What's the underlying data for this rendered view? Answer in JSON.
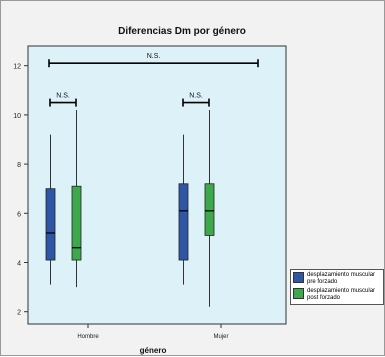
{
  "chart_data": {
    "type": "boxplot",
    "title": "Diferencias Dm por género",
    "xlabel": "género",
    "ylabel": "",
    "categories": [
      "Hombre",
      "Mujer"
    ],
    "ylim": [
      1.5,
      12.8
    ],
    "yticks": [
      2,
      4,
      6,
      8,
      10,
      12
    ],
    "colors": {
      "plot_bg": "#ddf1f8",
      "pre": "#2f55a5",
      "post": "#3ea84d"
    },
    "series": [
      {
        "name": "desplazamiento muscular pre forzado",
        "boxes": [
          {
            "category": "Hombre",
            "min": 3.1,
            "q1": 4.1,
            "median": 5.2,
            "q3": 7.0,
            "max": 9.2
          },
          {
            "category": "Mujer",
            "min": 3.1,
            "q1": 4.1,
            "median": 6.1,
            "q3": 7.2,
            "max": 9.2
          }
        ]
      },
      {
        "name": "desplazamiento muscular post forzado",
        "boxes": [
          {
            "category": "Hombre",
            "min": 3.0,
            "q1": 4.1,
            "median": 4.6,
            "q3": 7.1,
            "max": 10.2
          },
          {
            "category": "Mujer",
            "min": 2.2,
            "q1": 5.1,
            "median": 6.1,
            "q3": 7.2,
            "max": 10.2
          }
        ]
      }
    ],
    "annotations": [
      {
        "label": "N.S.",
        "from": "Hombre",
        "to": "Mujer",
        "y": 12.1
      },
      {
        "label": "N.S.",
        "from": "Hombre",
        "to": "Hombre",
        "y": 10.5
      },
      {
        "label": "N.S.",
        "from": "Mujer",
        "to": "Mujer",
        "y": 10.5
      }
    ],
    "legend": {
      "position": "bottom-right",
      "items": [
        "desplazamiento muscular pre forzado",
        "desplazamiento muscular post forzado"
      ]
    }
  }
}
